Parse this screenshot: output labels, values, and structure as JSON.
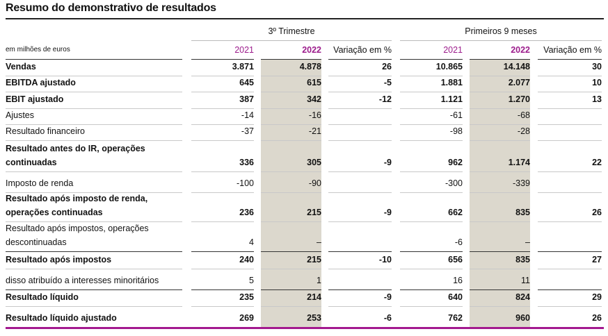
{
  "title": "Resumo do demonstrativo de resultados",
  "groups": [
    "3º Trimestre",
    "Primeiros 9 meses"
  ],
  "header": {
    "label": "em milhões de euros",
    "cols": [
      "2021",
      "2022",
      "Variação em %",
      "2021",
      "2022",
      "Variação em %"
    ]
  },
  "rows": [
    {
      "label": "Vendas",
      "bold": true,
      "values": [
        "3.871",
        "4.878",
        "26",
        "10.865",
        "14.148",
        "30"
      ]
    },
    {
      "label": "EBITDA ajustado",
      "bold": true,
      "values": [
        "645",
        "615",
        "-5",
        "1.881",
        "2.077",
        "10"
      ]
    },
    {
      "label": "EBIT ajustado",
      "bold": true,
      "values": [
        "387",
        "342",
        "-12",
        "1.121",
        "1.270",
        "13"
      ]
    },
    {
      "label": "Ajustes",
      "bold": false,
      "values": [
        "-14",
        "-16",
        "",
        "-61",
        "-68",
        ""
      ]
    },
    {
      "label": "Resultado financeiro",
      "bold": false,
      "values": [
        "-37",
        "-21",
        "",
        "-98",
        "-28",
        ""
      ]
    },
    {
      "label": "Resultado antes do IR, operações continuadas",
      "bold": true,
      "values": [
        "336",
        "305",
        "-9",
        "962",
        "1.174",
        "22"
      ]
    },
    {
      "label": "Imposto de renda",
      "bold": false,
      "values": [
        "-100",
        "-90",
        "",
        "-300",
        "-339",
        ""
      ]
    },
    {
      "label": "Resultado após imposto de renda, operações continuadas",
      "bold": true,
      "values": [
        "236",
        "215",
        "-9",
        "662",
        "835",
        "26"
      ]
    },
    {
      "label": "Resultado após impostos, operações descontinuadas",
      "bold": false,
      "values": [
        "4",
        "–",
        "",
        "-6",
        "–",
        ""
      ]
    },
    {
      "label": "Resultado após impostos",
      "bold": true,
      "values": [
        "240",
        "215",
        "-10",
        "656",
        "835",
        "27"
      ]
    },
    {
      "label": "disso atribuído a interesses minoritários",
      "bold": false,
      "values": [
        "5",
        "1",
        "",
        "16",
        "11",
        ""
      ]
    },
    {
      "label": "Resultado líquido",
      "bold": true,
      "values": [
        "235",
        "214",
        "-9",
        "640",
        "824",
        "29"
      ]
    },
    {
      "label": "Resultado líquido ajustado",
      "bold": true,
      "values": [
        "269",
        "253",
        "-6",
        "762",
        "960",
        "26"
      ]
    }
  ],
  "colors": {
    "accent": "#a3198f",
    "shade": "#dcd8cd"
  }
}
